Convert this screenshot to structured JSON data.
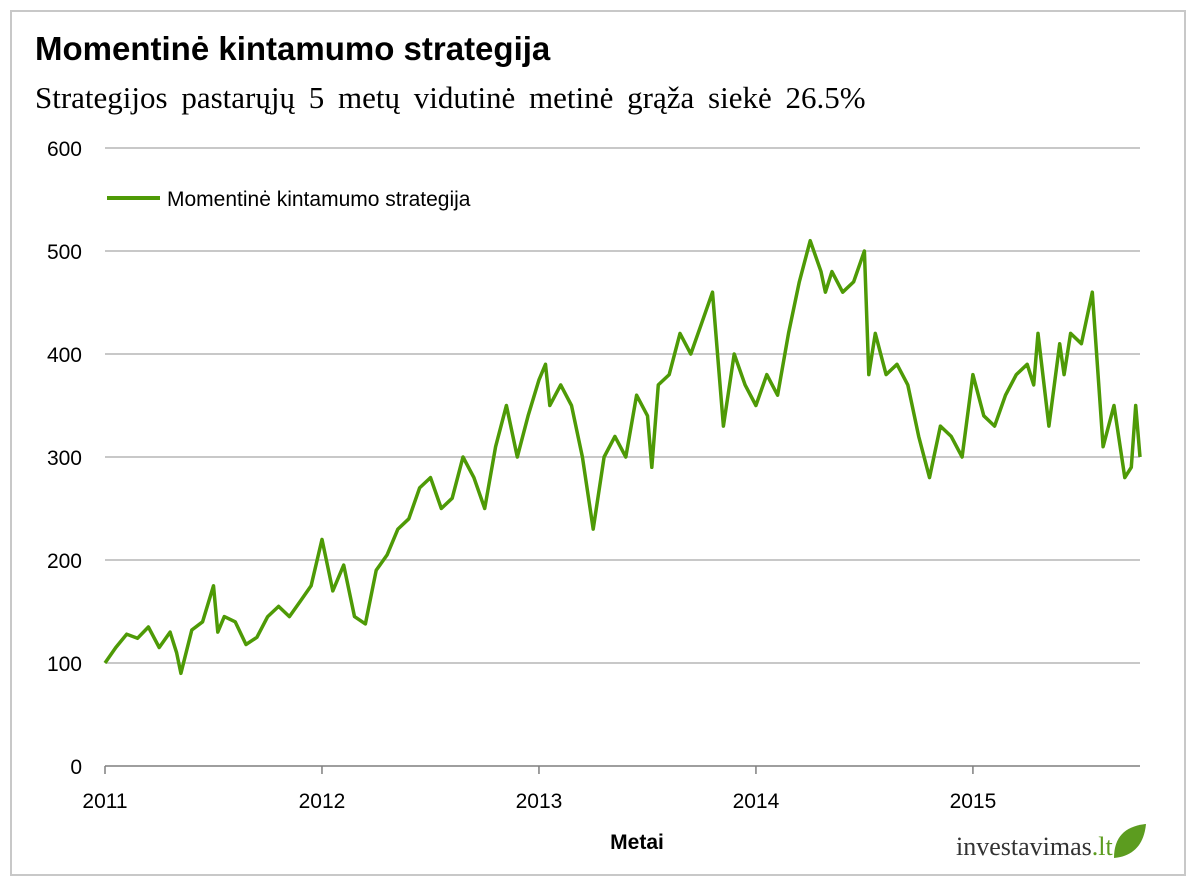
{
  "title": "Momentinė kintamumo strategija",
  "subtitle": "Strategijos pastarųjų 5 metų vidutinė metinė grąža siekė 26.5%",
  "logo": {
    "text": "investavimas",
    "suffix": ".lt"
  },
  "colors": {
    "series": "#4e9a06",
    "grid": "#a6a6a6",
    "axis": "#7f7f7f",
    "logo_green": "#5c9c1f"
  },
  "chart_data": {
    "type": "line",
    "title": "Momentinė kintamumo strategija",
    "subtitle": "Strategijos pastarųjų 5 metų vidutinė metinė grąža siekė 26.5%",
    "xlabel": "Metai",
    "ylabel": "",
    "x_ticks": [
      "2011",
      "2012",
      "2013",
      "2014",
      "2015"
    ],
    "y_ticks": [
      0,
      100,
      200,
      300,
      400,
      500,
      600
    ],
    "ylim": [
      0,
      600
    ],
    "xlim": [
      2011.0,
      2015.77
    ],
    "grid": true,
    "legend": {
      "position": "top-left"
    },
    "series": [
      {
        "name": "Momentinė kintamumo strategija",
        "color": "#4e9a06",
        "x": [
          2011.0,
          2011.05,
          2011.1,
          2011.15,
          2011.2,
          2011.25,
          2011.3,
          2011.33,
          2011.35,
          2011.4,
          2011.45,
          2011.5,
          2011.52,
          2011.55,
          2011.6,
          2011.65,
          2011.7,
          2011.75,
          2011.8,
          2011.85,
          2011.9,
          2011.95,
          2012.0,
          2012.03,
          2012.05,
          2012.1,
          2012.15,
          2012.2,
          2012.25,
          2012.3,
          2012.35,
          2012.4,
          2012.45,
          2012.5,
          2012.55,
          2012.6,
          2012.65,
          2012.7,
          2012.75,
          2012.8,
          2012.85,
          2012.9,
          2012.95,
          2013.0,
          2013.03,
          2013.05,
          2013.1,
          2013.15,
          2013.2,
          2013.25,
          2013.3,
          2013.35,
          2013.4,
          2013.45,
          2013.5,
          2013.52,
          2013.55,
          2013.6,
          2013.65,
          2013.7,
          2013.75,
          2013.8,
          2013.85,
          2013.9,
          2013.95,
          2014.0,
          2014.05,
          2014.1,
          2014.15,
          2014.2,
          2014.25,
          2014.3,
          2014.32,
          2014.35,
          2014.4,
          2014.45,
          2014.5,
          2014.52,
          2014.55,
          2014.6,
          2014.65,
          2014.7,
          2014.75,
          2014.8,
          2014.85,
          2014.9,
          2014.95,
          2015.0,
          2015.05,
          2015.1,
          2015.15,
          2015.2,
          2015.25,
          2015.28,
          2015.3,
          2015.35,
          2015.4,
          2015.42,
          2015.45,
          2015.5,
          2015.55,
          2015.6,
          2015.65,
          2015.7,
          2015.73,
          2015.75,
          2015.77
        ],
        "values": [
          100,
          115,
          128,
          124,
          135,
          115,
          130,
          110,
          90,
          132,
          140,
          175,
          130,
          145,
          140,
          118,
          125,
          145,
          155,
          145,
          160,
          175,
          220,
          190,
          170,
          195,
          145,
          138,
          190,
          205,
          230,
          240,
          270,
          280,
          250,
          260,
          300,
          280,
          250,
          310,
          350,
          300,
          340,
          375,
          390,
          350,
          370,
          350,
          300,
          230,
          300,
          320,
          300,
          360,
          340,
          290,
          370,
          380,
          420,
          400,
          430,
          460,
          330,
          400,
          370,
          350,
          380,
          360,
          420,
          470,
          510,
          480,
          460,
          480,
          460,
          470,
          500,
          380,
          420,
          380,
          390,
          370,
          320,
          280,
          330,
          320,
          300,
          380,
          340,
          330,
          360,
          380,
          390,
          370,
          420,
          330,
          410,
          380,
          420,
          410,
          460,
          310,
          350,
          280,
          290,
          350,
          300
        ]
      }
    ]
  }
}
